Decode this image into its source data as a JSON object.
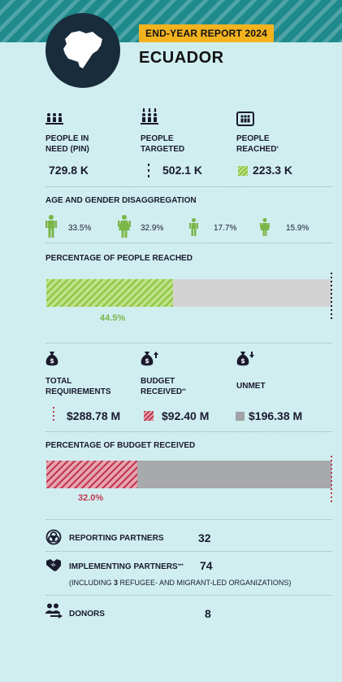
{
  "header": {
    "badge": "END-YEAR REPORT 2024",
    "country": "ECUADOR"
  },
  "people": {
    "in_need": {
      "label_line1": "PEOPLE IN",
      "label_line2": "NEED (PIN)",
      "value": "729.8 K"
    },
    "targeted": {
      "label_line1": "PEOPLE",
      "label_line2": "TARGETED",
      "value": "502.1 K"
    },
    "reached": {
      "label_line1": "PEOPLE",
      "label_line2": "REACHED",
      "sup": "*",
      "value": "223.3 K"
    }
  },
  "age_gender": {
    "title": "AGE AND GENDER DISAGGREGATION",
    "groups": [
      {
        "icon": "man-icon",
        "value": "33.5%"
      },
      {
        "icon": "woman-icon",
        "value": "32.9%"
      },
      {
        "icon": "boy-icon",
        "value": "17.7%"
      },
      {
        "icon": "girl-icon",
        "value": "15.9%"
      }
    ]
  },
  "people_reached_pct": {
    "title": "PERCENTAGE OF PEOPLE REACHED",
    "value_label": "44.5%",
    "fraction": 0.445
  },
  "funding": {
    "total": {
      "label_line1": "TOTAL",
      "label_line2": "REQUIREMENTS",
      "value": "$288.78 M"
    },
    "received": {
      "label_line1": "BUDGET",
      "label_line2": "RECEIVED",
      "sup": "**",
      "value": "$92.40 M"
    },
    "unmet": {
      "label_line1": "UNMET",
      "value": "$196.38 M"
    }
  },
  "budget_pct": {
    "title": "PERCENTAGE OF BUDGET RECEIVED",
    "value_label": "32.0%",
    "fraction": 0.32
  },
  "partners": {
    "reporting": {
      "label": "REPORTING PARTNERS",
      "value": "32"
    },
    "implementing": {
      "label": "IMPLEMENTING PARTNERS",
      "sup": "***",
      "value": "74",
      "note_pre": "(INCLUDING ",
      "note_num": "3",
      "note_post": " REFUGEE- AND MIGRANT-LED ORGANIZATIONS)"
    },
    "donors": {
      "label": "DONORS",
      "value": "8"
    }
  },
  "colors": {
    "teal": "#1e8a8c",
    "background": "#d0eef0",
    "badge": "#f3b31f",
    "green": "#7ab648",
    "red": "#c0394f",
    "navy": "#182c3c"
  }
}
